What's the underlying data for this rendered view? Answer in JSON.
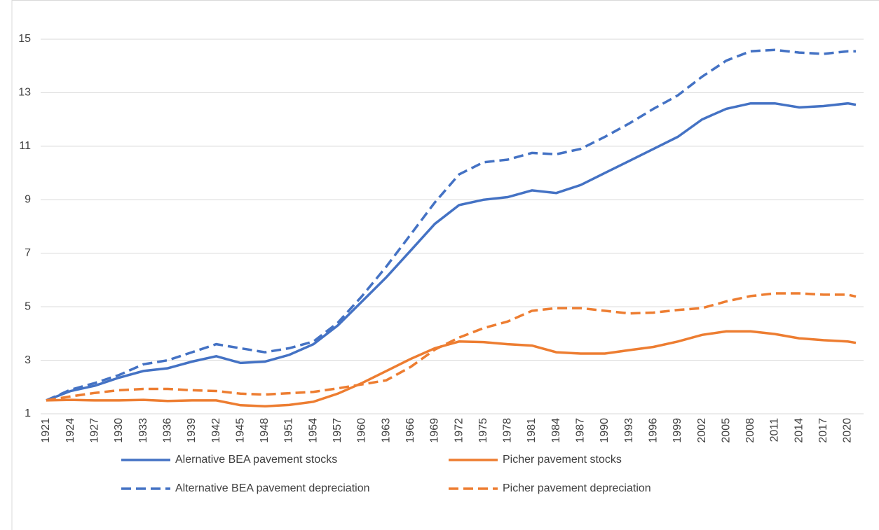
{
  "chart_data": {
    "type": "line",
    "x": [
      1921,
      1924,
      1927,
      1930,
      1933,
      1936,
      1939,
      1942,
      1945,
      1948,
      1951,
      1954,
      1957,
      1960,
      1963,
      1966,
      1969,
      1972,
      1975,
      1978,
      1981,
      1984,
      1987,
      1990,
      1993,
      1996,
      1999,
      2002,
      2005,
      2008,
      2011,
      2014,
      2017,
      2020,
      2021
    ],
    "series": [
      {
        "name": "Alernative BEA pavement stocks",
        "color": "#4472c4",
        "dash": false,
        "values": [
          1.5,
          1.85,
          2.05,
          2.35,
          2.6,
          2.7,
          2.95,
          3.15,
          2.9,
          2.95,
          3.2,
          3.6,
          4.3,
          5.2,
          6.1,
          7.1,
          8.1,
          8.8,
          9.0,
          9.1,
          9.35,
          9.25,
          9.55,
          10.0,
          10.45,
          10.9,
          11.35,
          12.0,
          12.4,
          12.6,
          12.6,
          12.45,
          12.5,
          12.6,
          12.55
        ]
      },
      {
        "name": "Picher pavement stocks",
        "color": "#ed7d31",
        "dash": false,
        "values": [
          1.5,
          1.52,
          1.5,
          1.5,
          1.52,
          1.48,
          1.5,
          1.5,
          1.32,
          1.28,
          1.33,
          1.45,
          1.75,
          2.15,
          2.6,
          3.05,
          3.45,
          3.7,
          3.68,
          3.6,
          3.55,
          3.3,
          3.25,
          3.25,
          3.38,
          3.5,
          3.7,
          3.95,
          4.08,
          4.08,
          3.98,
          3.82,
          3.75,
          3.7,
          3.65
        ]
      },
      {
        "name": "Alternative BEA pavement depreciation",
        "color": "#4472c4",
        "dash": true,
        "values": [
          1.5,
          1.9,
          2.15,
          2.45,
          2.85,
          3.0,
          3.3,
          3.6,
          3.45,
          3.3,
          3.45,
          3.7,
          4.4,
          5.4,
          6.5,
          7.7,
          8.9,
          9.95,
          10.4,
          10.5,
          10.75,
          10.7,
          10.9,
          11.35,
          11.85,
          12.4,
          12.9,
          13.6,
          14.2,
          14.55,
          14.6,
          14.5,
          14.45,
          14.55,
          14.55
        ]
      },
      {
        "name": "Picher pavement depreciation",
        "color": "#ed7d31",
        "dash": true,
        "values": [
          1.5,
          1.65,
          1.78,
          1.88,
          1.93,
          1.93,
          1.88,
          1.85,
          1.75,
          1.72,
          1.77,
          1.82,
          1.95,
          2.1,
          2.25,
          2.75,
          3.4,
          3.85,
          4.2,
          4.45,
          4.85,
          4.95,
          4.95,
          4.85,
          4.75,
          4.78,
          4.88,
          4.95,
          5.2,
          5.4,
          5.5,
          5.5,
          5.45,
          5.45,
          5.38
        ]
      }
    ],
    "xlim": [
      1921,
      2021
    ],
    "xticks": [
      1921,
      1924,
      1927,
      1930,
      1933,
      1936,
      1939,
      1942,
      1945,
      1948,
      1951,
      1954,
      1957,
      1960,
      1963,
      1966,
      1969,
      1972,
      1975,
      1978,
      1981,
      1984,
      1987,
      1990,
      1993,
      1996,
      1999,
      2002,
      2005,
      2008,
      2011,
      2014,
      2017,
      2020
    ],
    "ylim": [
      1,
      15
    ],
    "yticks": [
      1,
      3,
      5,
      7,
      9,
      11,
      13,
      15
    ],
    "grid": true,
    "legend": "bottom"
  }
}
